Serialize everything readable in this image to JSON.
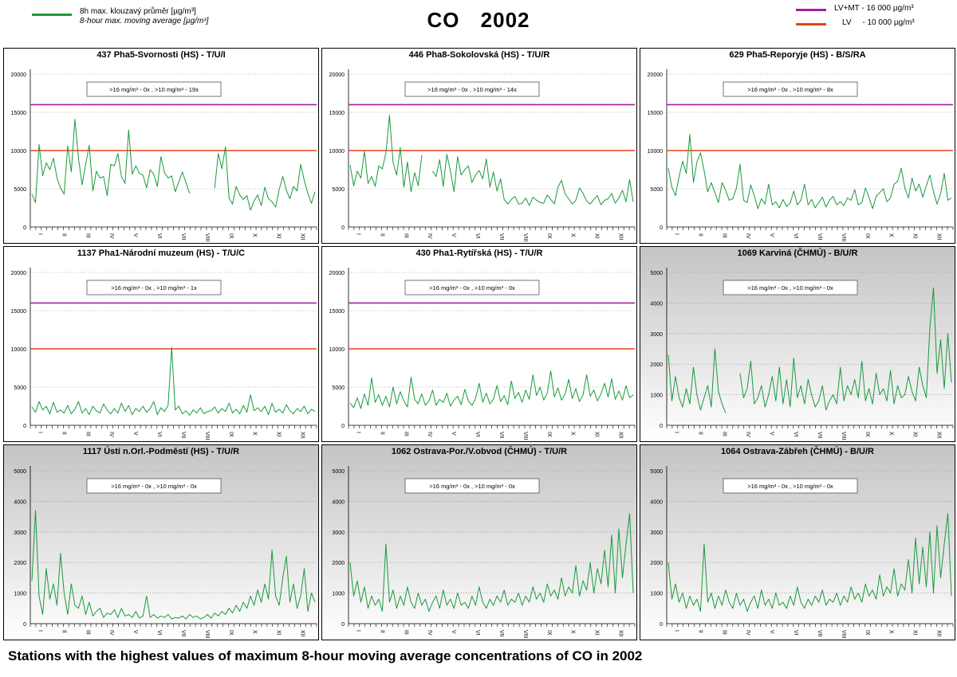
{
  "header": {
    "legend_series_cz": "8h max. klouzavý průměr [µg/m³]",
    "legend_series_en": "8-hour max. moving average [µg/m³]",
    "title": "CO    2002",
    "limit_mt": "LV+MT - 16 000 µg/m³",
    "limit_lv": "LV     - 10 000 µg/m³"
  },
  "caption": "Stations with the highest values of maximum 8-hour moving average concentrations of CO in 2002",
  "colors": {
    "series": "#1a9a3c",
    "lv_mt": "#a020a0",
    "lv": "#e8401c",
    "grid": "#808080",
    "panel_gradient_top": "#c4c4c4"
  },
  "chart_data": [
    {
      "type": "line",
      "title": "437 Pha5-Svornosti (HS) - T/U/I",
      "annotation": ">16 mg/m³ - 0x ,  >10 mg/m³ - 19x",
      "ylim": [
        0,
        20000
      ],
      "yticks": [
        "0",
        "5000",
        "10000",
        "15000",
        "20000"
      ],
      "thresholds": [
        16000,
        10000
      ],
      "months": [
        "I",
        "II",
        "III",
        "IV",
        "V",
        "VI",
        "VII",
        "VIII",
        "IX",
        "X",
        "XI",
        "XII"
      ],
      "gradient": false,
      "series": [
        {
          "values": [
            4300,
            3200,
            10800,
            6700,
            8400,
            7500,
            9000,
            6400,
            5100,
            4300,
            10600,
            7200,
            14100,
            9000,
            5500,
            8200,
            10700,
            4700,
            7300,
            6400,
            6600,
            4100,
            8200,
            8000,
            9600,
            6600,
            5700,
            12700,
            6900,
            8000,
            7000,
            6800,
            5100,
            7500,
            6900,
            5300,
            9200,
            7100,
            6400,
            6700,
            4600,
            5900,
            7200,
            5800,
            4400,
            null,
            null,
            null,
            null,
            null,
            null,
            5100,
            9600,
            7600,
            10500,
            3800,
            3000,
            5300,
            4200,
            3600,
            4100,
            2200,
            3400,
            4200,
            2800,
            5200,
            3700,
            3300,
            2600,
            4900,
            6600,
            4800,
            3700,
            5300,
            4700,
            8200,
            6100,
            4400,
            3100,
            4600
          ]
        }
      ]
    },
    {
      "type": "line",
      "title": "446 Pha8-Sokolovská (HS) - T/U/R",
      "annotation": ">16 mg/m³ - 0x ,  >10 mg/m³ - 14x",
      "ylim": [
        0,
        20000
      ],
      "yticks": [
        "0",
        "5000",
        "10000",
        "15000",
        "20000"
      ],
      "thresholds": [
        16000,
        10000
      ],
      "months": [
        "I",
        "II",
        "III",
        "IV",
        "V",
        "VI",
        "VII",
        "VIII",
        "IX",
        "X",
        "XI",
        "XII"
      ],
      "gradient": false,
      "series": [
        {
          "values": [
            8100,
            5400,
            7300,
            6400,
            9900,
            5700,
            6600,
            5300,
            8000,
            7600,
            9700,
            14600,
            8400,
            6800,
            10400,
            5200,
            8500,
            4600,
            7100,
            5400,
            9400,
            null,
            null,
            7300,
            6600,
            8800,
            5300,
            9500,
            7300,
            4600,
            9200,
            6800,
            7500,
            8000,
            5800,
            6800,
            7400,
            6300,
            8900,
            5200,
            7200,
            4700,
            6300,
            3600,
            3000,
            3600,
            4000,
            3000,
            3100,
            3800,
            2800,
            3900,
            3500,
            3200,
            3100,
            4200,
            3600,
            3000,
            5200,
            6100,
            4300,
            3700,
            3000,
            3500,
            5100,
            4400,
            3400,
            3000,
            3600,
            4100,
            2900,
            3500,
            3700,
            4400,
            3100,
            3800,
            4800,
            3300,
            6200,
            3300
          ]
        }
      ]
    },
    {
      "type": "line",
      "title": "629 Pha5-Reporyje (HS) - B/S/RA",
      "annotation": ">16 mg/m³ - 0x ,  >10 mg/m³ - 8x",
      "ylim": [
        0,
        20000
      ],
      "yticks": [
        "0",
        "5000",
        "10000",
        "15000",
        "20000"
      ],
      "thresholds": [
        16000,
        10000
      ],
      "months": [
        "I",
        "II",
        "III",
        "IV",
        "V",
        "VI",
        "VII",
        "VIII",
        "IX",
        "X",
        "XI",
        "XII"
      ],
      "gradient": false,
      "series": [
        {
          "values": [
            7700,
            5200,
            4100,
            6600,
            8600,
            7000,
            12100,
            5800,
            8500,
            9700,
            7400,
            4600,
            5800,
            4500,
            3200,
            5800,
            4800,
            3500,
            3700,
            5100,
            8200,
            3500,
            3200,
            5500,
            4100,
            2400,
            3700,
            3000,
            5600,
            2900,
            3300,
            2500,
            3600,
            2700,
            3100,
            4700,
            2900,
            3500,
            5600,
            2900,
            3600,
            2500,
            3200,
            3900,
            2600,
            3500,
            4000,
            2900,
            3300,
            2800,
            3800,
            3500,
            4900,
            2900,
            3200,
            5100,
            3900,
            2400,
            4000,
            4500,
            5000,
            3300,
            3800,
            5600,
            6000,
            7700,
            5100,
            3800,
            6400,
            4700,
            5600,
            3900,
            5400,
            6800,
            4600,
            3000,
            4400,
            7000,
            3500,
            3800
          ]
        }
      ]
    },
    {
      "type": "line",
      "title": "1137 Pha1-Národní muzeum (HS) - T/U/C",
      "annotation": ">16 mg/m³ - 0x ,  >10 mg/m³ - 1x",
      "ylim": [
        0,
        20000
      ],
      "yticks": [
        "0",
        "5000",
        "10000",
        "15000",
        "20000"
      ],
      "thresholds": [
        16000,
        10000
      ],
      "months": [
        "I",
        "II",
        "III",
        "IV",
        "V",
        "VI",
        "VII",
        "VIII",
        "IX",
        "X",
        "XI",
        "XII"
      ],
      "gradient": false,
      "series": [
        {
          "values": [
            2400,
            1700,
            3100,
            2000,
            2500,
            1500,
            3000,
            1700,
            2000,
            1600,
            2600,
            1500,
            2100,
            3100,
            1600,
            2200,
            1400,
            2500,
            1900,
            1600,
            2800,
            2000,
            1500,
            2200,
            1600,
            2900,
            1800,
            2600,
            1400,
            2200,
            1800,
            2500,
            1700,
            2200,
            3100,
            1400,
            2300,
            1800,
            2600,
            10200,
            2000,
            2500,
            1500,
            1900,
            1300,
            2000,
            1600,
            2300,
            1500,
            1800,
            1900,
            2400,
            1600,
            2200,
            1800,
            2900,
            1600,
            2100,
            1500,
            2600,
            1700,
            4000,
            1900,
            2300,
            1800,
            2500,
            1400,
            2900,
            1700,
            2100,
            1600,
            2700,
            1900,
            1500,
            2200,
            1800,
            2500,
            1500,
            2100,
            1800
          ]
        }
      ]
    },
    {
      "type": "line",
      "title": "430 Pha1-Rytířská (HS) - T/U/R",
      "annotation": ">16 mg/m³ - 0x ,  >10 mg/m³ - 0x",
      "ylim": [
        0,
        20000
      ],
      "yticks": [
        "0",
        "5000",
        "10000",
        "15000",
        "20000"
      ],
      "thresholds": [
        16000,
        10000
      ],
      "months": [
        "I",
        "II",
        "III",
        "IV",
        "V",
        "VI",
        "VII",
        "VIII",
        "IX",
        "X",
        "XI",
        "XII"
      ],
      "gradient": false,
      "series": [
        {
          "values": [
            2900,
            2300,
            3600,
            2200,
            4100,
            2600,
            6200,
            3000,
            4000,
            2600,
            3800,
            2400,
            5000,
            2800,
            4400,
            3200,
            2400,
            6300,
            3400,
            2800,
            4100,
            2600,
            3200,
            4600,
            2600,
            3400,
            3000,
            4200,
            2500,
            3300,
            3800,
            2700,
            4700,
            3200,
            2600,
            3500,
            5500,
            3000,
            4200,
            2800,
            3400,
            5200,
            3100,
            3900,
            2700,
            5800,
            3500,
            4300,
            3000,
            4600,
            3400,
            6600,
            3900,
            5000,
            3300,
            4200,
            7100,
            3700,
            4900,
            3300,
            4100,
            6000,
            3500,
            4800,
            3100,
            4000,
            6600,
            3800,
            4600,
            3200,
            4100,
            5500,
            3700,
            6100,
            3400,
            4500,
            3300,
            5200,
            3600,
            4000
          ]
        }
      ]
    },
    {
      "type": "line",
      "title": "1069 Karviná (ČHMÚ) - B/U/R",
      "annotation": ">16 mg/m³ - 0x ,  >10 mg/m³ - 0x",
      "ylim": [
        0,
        5000
      ],
      "yticks": [
        "0",
        "1000",
        "2000",
        "3000",
        "4000",
        "5000"
      ],
      "thresholds": [],
      "months": [
        "I",
        "II",
        "III",
        "IV",
        "V",
        "VI",
        "VII",
        "VIII",
        "IX",
        "X",
        "XI",
        "XII"
      ],
      "gradient": true,
      "series": [
        {
          "values": [
            2300,
            800,
            1600,
            900,
            600,
            1200,
            700,
            1900,
            1000,
            500,
            900,
            1300,
            600,
            2500,
            1100,
            700,
            400,
            null,
            null,
            null,
            1700,
            900,
            1200,
            2100,
            700,
            900,
            1300,
            600,
            1000,
            1600,
            800,
            1900,
            700,
            1500,
            600,
            2200,
            900,
            1300,
            700,
            1500,
            1000,
            600,
            800,
            1300,
            500,
            800,
            1000,
            700,
            1900,
            800,
            1300,
            1000,
            1500,
            900,
            2100,
            800,
            1200,
            700,
            1700,
            1000,
            1200,
            800,
            1800,
            700,
            1300,
            900,
            1000,
            1600,
            1100,
            800,
            1900,
            1300,
            900,
            3200,
            4500,
            1700,
            2800,
            1200,
            3000,
            1400
          ]
        }
      ]
    },
    {
      "type": "line",
      "title": "1117 Ústí n.Orl.-Podměstí (HS) - T/U/R",
      "annotation": ">16 mg/m³ - 0x ,  >10 mg/m³ - 0x",
      "ylim": [
        0,
        5000
      ],
      "yticks": [
        "0",
        "1000",
        "2000",
        "3000",
        "4000",
        "5000"
      ],
      "thresholds": [],
      "months": [
        "I",
        "II",
        "III",
        "IV",
        "V",
        "VI",
        "VII",
        "VIII",
        "IX",
        "X",
        "XI",
        "XII"
      ],
      "gradient": true,
      "series": [
        {
          "values": [
            1400,
            3700,
            900,
            300,
            1800,
            800,
            1300,
            600,
            2300,
            1000,
            300,
            1300,
            600,
            500,
            900,
            300,
            700,
            250,
            400,
            500,
            200,
            350,
            300,
            450,
            200,
            500,
            250,
            300,
            200,
            400,
            180,
            250,
            900,
            200,
            300,
            180,
            250,
            200,
            300,
            150,
            200,
            180,
            250,
            150,
            300,
            200,
            250,
            150,
            200,
            300,
            180,
            350,
            250,
            400,
            300,
            500,
            350,
            600,
            400,
            700,
            500,
            900,
            600,
            1100,
            700,
            1300,
            800,
            2400,
            900,
            600,
            1500,
            2200,
            700,
            1300,
            500,
            900,
            1800,
            400,
            1000,
            700
          ]
        }
      ]
    },
    {
      "type": "line",
      "title": "1062 Ostrava-Por./V.obvod (ČHMÚ) - T/U/R",
      "annotation": ">16 mg/m³ - 0x ,  >10 mg/m³ - 0x",
      "ylim": [
        0,
        5000
      ],
      "yticks": [
        "0",
        "1000",
        "2000",
        "3000",
        "4000",
        "5000"
      ],
      "thresholds": [],
      "months": [
        "I",
        "II",
        "III",
        "IV",
        "V",
        "VI",
        "VII",
        "VIII",
        "IX",
        "X",
        "XI",
        "XII"
      ],
      "gradient": true,
      "series": [
        {
          "values": [
            2000,
            900,
            1400,
            700,
            1200,
            500,
            900,
            600,
            800,
            400,
            2600,
            700,
            1100,
            500,
            900,
            600,
            1200,
            700,
            500,
            1000,
            600,
            800,
            400,
            700,
            900,
            500,
            1100,
            600,
            800,
            500,
            1000,
            600,
            700,
            500,
            900,
            600,
            1200,
            700,
            500,
            800,
            600,
            900,
            700,
            1100,
            600,
            800,
            700,
            1000,
            600,
            900,
            700,
            1200,
            800,
            1000,
            700,
            1300,
            900,
            1100,
            800,
            1500,
            900,
            1200,
            1000,
            1900,
            900,
            1400,
            1100,
            2000,
            1000,
            1800,
            1300,
            2400,
            1200,
            2900,
            1000,
            3100,
            1500,
            2600,
            3600,
            1000
          ]
        }
      ]
    },
    {
      "type": "line",
      "title": "1064 Ostrava-Zábřeh (ČHMÚ) - B/U/R",
      "annotation": ">16 mg/m³ - 0x ,  >10 mg/m³ - 0x",
      "ylim": [
        0,
        5000
      ],
      "yticks": [
        "0",
        "1000",
        "2000",
        "3000",
        "4000",
        "5000"
      ],
      "thresholds": [],
      "months": [
        "I",
        "II",
        "III",
        "IV",
        "V",
        "VI",
        "VII",
        "VIII",
        "IX",
        "X",
        "XI",
        "XII"
      ],
      "gradient": true,
      "series": [
        {
          "values": [
            2000,
            800,
            1300,
            700,
            1000,
            500,
            900,
            600,
            800,
            400,
            2600,
            700,
            1000,
            500,
            900,
            600,
            1100,
            700,
            500,
            1000,
            600,
            800,
            400,
            700,
            900,
            500,
            1100,
            600,
            800,
            500,
            1000,
            600,
            700,
            500,
            900,
            600,
            1200,
            700,
            500,
            800,
            600,
            900,
            700,
            1100,
            600,
            800,
            700,
            1000,
            600,
            900,
            700,
            1200,
            800,
            1000,
            700,
            1300,
            900,
            1100,
            800,
            1600,
            900,
            1200,
            1000,
            1800,
            900,
            1300,
            1100,
            2100,
            1000,
            2800,
            1300,
            2500,
            1200,
            3000,
            1000,
            3200,
            1500,
            2600,
            3600,
            900
          ]
        }
      ]
    }
  ]
}
